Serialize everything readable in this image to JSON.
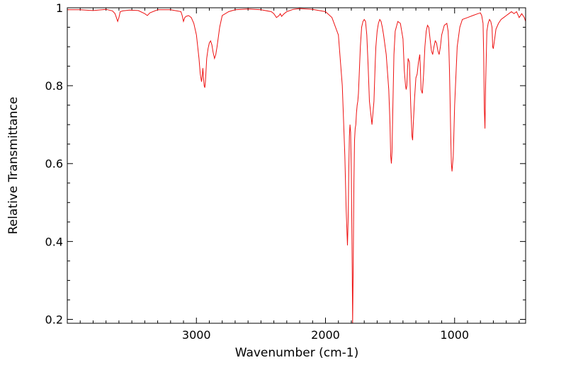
{
  "chart_data": {
    "type": "line",
    "title": "",
    "xlabel": "Wavenumber (cm-1)",
    "ylabel": "Relative Transmittance",
    "xlim": [
      4000,
      450
    ],
    "ylim": [
      0.19,
      1.0
    ],
    "x_reversed": true,
    "grid": false,
    "legend": "none",
    "x_ticks": [
      3000,
      2000,
      1000
    ],
    "x_tick_labels": [
      "3000",
      "2000",
      "1000"
    ],
    "y_ticks": [
      0.2,
      0.4,
      0.6,
      0.8,
      1.0
    ],
    "y_tick_labels": [
      "0.2",
      "0.4",
      "0.6",
      "0.8",
      "1"
    ],
    "line_color": "#ee1111",
    "series": [
      {
        "x": [
          4000,
          3900,
          3800,
          3700,
          3650,
          3630,
          3620,
          3610,
          3600,
          3590,
          3570,
          3520,
          3450,
          3400,
          3380,
          3360,
          3300,
          3200,
          3120,
          3110,
          3100,
          3090,
          3080,
          3060,
          3040,
          3020,
          3000,
          2990,
          2980,
          2970,
          2960,
          2955,
          2950,
          2945,
          2940,
          2935,
          2930,
          2925,
          2920,
          2910,
          2900,
          2890,
          2880,
          2870,
          2860,
          2850,
          2840,
          2820,
          2800,
          2750,
          2700,
          2600,
          2500,
          2420,
          2400,
          2380,
          2360,
          2350,
          2340,
          2320,
          2300,
          2250,
          2200,
          2100,
          2000,
          1950,
          1900,
          1870,
          1850,
          1840,
          1830,
          1825,
          1820,
          1815,
          1810,
          1805,
          1800,
          1795,
          1790,
          1785,
          1780,
          1775,
          1770,
          1765,
          1760,
          1755,
          1750,
          1745,
          1740,
          1730,
          1720,
          1710,
          1700,
          1690,
          1680,
          1670,
          1660,
          1640,
          1625,
          1615,
          1610,
          1605,
          1600,
          1590,
          1580,
          1570,
          1560,
          1550,
          1530,
          1510,
          1500,
          1495,
          1490,
          1485,
          1480,
          1470,
          1460,
          1440,
          1420,
          1400,
          1390,
          1380,
          1375,
          1370,
          1365,
          1360,
          1350,
          1340,
          1330,
          1325,
          1320,
          1310,
          1300,
          1290,
          1280,
          1270,
          1265,
          1260,
          1250,
          1240,
          1230,
          1220,
          1210,
          1200,
          1190,
          1180,
          1170,
          1160,
          1150,
          1140,
          1130,
          1120,
          1110,
          1100,
          1080,
          1060,
          1050,
          1045,
          1040,
          1035,
          1030,
          1025,
          1020,
          1010,
          1000,
          980,
          960,
          940,
          900,
          860,
          820,
          800,
          790,
          780,
          775,
          770,
          765,
          760,
          750,
          740,
          730,
          720,
          710,
          705,
          700,
          690,
          680,
          660,
          640,
          620,
          600,
          580,
          560,
          540,
          520,
          500,
          480,
          460,
          450
        ],
        "y": [
          0.995,
          0.995,
          0.993,
          0.996,
          0.992,
          0.985,
          0.975,
          0.965,
          0.975,
          0.99,
          0.992,
          0.994,
          0.993,
          0.985,
          0.98,
          0.987,
          0.995,
          0.995,
          0.99,
          0.98,
          0.965,
          0.975,
          0.978,
          0.98,
          0.975,
          0.96,
          0.93,
          0.9,
          0.87,
          0.83,
          0.81,
          0.825,
          0.845,
          0.82,
          0.8,
          0.795,
          0.81,
          0.84,
          0.87,
          0.895,
          0.91,
          0.915,
          0.905,
          0.885,
          0.87,
          0.88,
          0.9,
          0.95,
          0.98,
          0.99,
          0.995,
          0.997,
          0.995,
          0.99,
          0.985,
          0.975,
          0.98,
          0.985,
          0.978,
          0.985,
          0.99,
          0.996,
          0.998,
          0.996,
          0.99,
          0.975,
          0.93,
          0.8,
          0.62,
          0.48,
          0.39,
          0.45,
          0.57,
          0.67,
          0.7,
          0.68,
          0.57,
          0.39,
          0.19,
          0.35,
          0.55,
          0.66,
          0.69,
          0.7,
          0.73,
          0.75,
          0.76,
          0.78,
          0.82,
          0.9,
          0.95,
          0.965,
          0.97,
          0.965,
          0.93,
          0.85,
          0.76,
          0.7,
          0.76,
          0.86,
          0.9,
          0.92,
          0.94,
          0.96,
          0.97,
          0.965,
          0.95,
          0.93,
          0.88,
          0.79,
          0.7,
          0.62,
          0.6,
          0.63,
          0.72,
          0.88,
          0.94,
          0.965,
          0.96,
          0.92,
          0.84,
          0.8,
          0.79,
          0.8,
          0.84,
          0.87,
          0.86,
          0.75,
          0.67,
          0.66,
          0.7,
          0.77,
          0.82,
          0.83,
          0.86,
          0.88,
          0.84,
          0.79,
          0.78,
          0.83,
          0.9,
          0.94,
          0.955,
          0.95,
          0.92,
          0.89,
          0.88,
          0.9,
          0.915,
          0.91,
          0.89,
          0.88,
          0.9,
          0.93,
          0.955,
          0.96,
          0.94,
          0.9,
          0.84,
          0.76,
          0.67,
          0.6,
          0.58,
          0.62,
          0.75,
          0.9,
          0.95,
          0.97,
          0.975,
          0.98,
          0.985,
          0.987,
          0.98,
          0.96,
          0.88,
          0.74,
          0.69,
          0.8,
          0.94,
          0.96,
          0.97,
          0.965,
          0.95,
          0.9,
          0.895,
          0.92,
          0.945,
          0.96,
          0.97,
          0.975,
          0.98,
          0.985,
          0.99,
          0.985,
          0.99,
          0.975,
          0.985,
          0.975,
          0.965
        ]
      }
    ]
  }
}
